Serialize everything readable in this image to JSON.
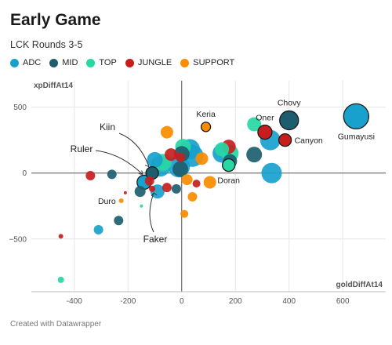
{
  "chart_data": {
    "type": "scatter",
    "title": "Early Game",
    "subtitle": "LCK Rounds 3-5",
    "xlabel": "goldDiffAt14",
    "ylabel": "xpDiffAt14",
    "xlim": [
      -560,
      760
    ],
    "ylim": [
      -900,
      700
    ],
    "x_ticks": [
      -400,
      -200,
      0,
      200,
      400,
      600
    ],
    "y_ticks": [
      500,
      0,
      -500
    ],
    "x_tick_labels": [
      "-400",
      "-200",
      "0",
      "200",
      "400",
      "600"
    ],
    "y_tick_labels": [
      "500",
      "0",
      "−500"
    ],
    "grid": true,
    "legend_position": "top-left",
    "legend": [
      {
        "name": "ADC",
        "color": "#18a1cd"
      },
      {
        "name": "MID",
        "color": "#1d5e6e"
      },
      {
        "name": "TOP",
        "color": "#27d7a4"
      },
      {
        "name": "JUNGLE",
        "color": "#c71e1d"
      },
      {
        "name": "SUPPORT",
        "color": "#fa8c00"
      }
    ],
    "points": [
      {
        "role": "ADC",
        "x": 650,
        "y": 430,
        "r": 16,
        "label": "Gumayusi",
        "outline": true
      },
      {
        "role": "MID",
        "x": 400,
        "y": 400,
        "r": 12,
        "label": "Chovy",
        "outline": true
      },
      {
        "role": "TOP",
        "x": 270,
        "y": 370,
        "r": 9,
        "label": "",
        "outline": false
      },
      {
        "role": "JUNGLE",
        "x": 310,
        "y": 310,
        "r": 9,
        "label": "Oner",
        "outline": true
      },
      {
        "role": "JUNGLE",
        "x": 385,
        "y": 250,
        "r": 8,
        "label": "Canyon",
        "outline": true
      },
      {
        "role": "SUPPORT",
        "x": 90,
        "y": 350,
        "r": 6,
        "label": "Keria",
        "outline": true
      },
      {
        "role": "TOP",
        "x": 175,
        "y": 60,
        "r": 8,
        "label": "Doran",
        "outline": true
      },
      {
        "role": "MID",
        "x": -110,
        "y": 0,
        "r": 8,
        "label": "Kiin",
        "outline": true
      },
      {
        "role": "ADC",
        "x": -140,
        "y": -70,
        "r": 9,
        "label": "Ruler",
        "outline": true
      },
      {
        "role": "JUNGLE",
        "x": -110,
        "y": -120,
        "r": 4,
        "label": "Faker",
        "outline": false
      },
      {
        "role": "SUPPORT",
        "x": -225,
        "y": -210,
        "r": 3,
        "label": "Duro",
        "outline": false
      },
      {
        "role": "ADC",
        "x": 330,
        "y": 250,
        "r": 13,
        "label": "",
        "outline": false
      },
      {
        "role": "MID",
        "x": 270,
        "y": 140,
        "r": 10,
        "label": "",
        "outline": false
      },
      {
        "role": "ADC",
        "x": 335,
        "y": 0,
        "r": 13,
        "label": "",
        "outline": false
      },
      {
        "role": "TOP",
        "x": 180,
        "y": 150,
        "r": 11,
        "label": "",
        "outline": false
      },
      {
        "role": "JUNGLE",
        "x": 175,
        "y": 200,
        "r": 9,
        "label": "",
        "outline": false
      },
      {
        "role": "ADC",
        "x": 150,
        "y": 150,
        "r": 12,
        "label": "",
        "outline": false
      },
      {
        "role": "MID",
        "x": 180,
        "y": 90,
        "r": 9,
        "label": "",
        "outline": false
      },
      {
        "role": "TOP",
        "x": 150,
        "y": 180,
        "r": 9,
        "label": "",
        "outline": false
      },
      {
        "role": "SUPPORT",
        "x": -55,
        "y": 310,
        "r": 8,
        "label": "",
        "outline": false
      },
      {
        "role": "TOP",
        "x": 5,
        "y": 200,
        "r": 10,
        "label": "",
        "outline": false
      },
      {
        "role": "ADC",
        "x": 30,
        "y": 180,
        "r": 13,
        "label": "",
        "outline": false
      },
      {
        "role": "SUPPORT",
        "x": 75,
        "y": 110,
        "r": 8,
        "label": "",
        "outline": false
      },
      {
        "role": "ADC",
        "x": 40,
        "y": 130,
        "r": 14,
        "label": "",
        "outline": false
      },
      {
        "role": "MID",
        "x": 0,
        "y": 145,
        "r": 10,
        "label": "",
        "outline": false
      },
      {
        "role": "JUNGLE",
        "x": -40,
        "y": 140,
        "r": 8,
        "label": "",
        "outline": false
      },
      {
        "role": "TOP",
        "x": -70,
        "y": 80,
        "r": 11,
        "label": "",
        "outline": false
      },
      {
        "role": "ADC",
        "x": -80,
        "y": 50,
        "r": 13,
        "label": "",
        "outline": false
      },
      {
        "role": "ADC",
        "x": -10,
        "y": 50,
        "r": 14,
        "label": "",
        "outline": false
      },
      {
        "role": "MID",
        "x": -5,
        "y": 30,
        "r": 10,
        "label": "",
        "outline": false
      },
      {
        "role": "JUNGLE",
        "x": -5,
        "y": 120,
        "r": 6,
        "label": "",
        "outline": false
      },
      {
        "role": "SUPPORT",
        "x": 20,
        "y": -50,
        "r": 7,
        "label": "",
        "outline": false
      },
      {
        "role": "MID",
        "x": -20,
        "y": -120,
        "r": 6,
        "label": "",
        "outline": false
      },
      {
        "role": "JUNGLE",
        "x": -55,
        "y": -110,
        "r": 6,
        "label": "",
        "outline": false
      },
      {
        "role": "JUNGLE",
        "x": 55,
        "y": -80,
        "r": 5,
        "label": "",
        "outline": false
      },
      {
        "role": "SUPPORT",
        "x": 40,
        "y": -180,
        "r": 6,
        "label": "",
        "outline": false
      },
      {
        "role": "SUPPORT",
        "x": 10,
        "y": -310,
        "r": 5,
        "label": "",
        "outline": false
      },
      {
        "role": "SUPPORT",
        "x": 105,
        "y": -70,
        "r": 8,
        "label": "",
        "outline": false
      },
      {
        "role": "ADC",
        "x": -90,
        "y": -140,
        "r": 9,
        "label": "",
        "outline": false
      },
      {
        "role": "MID",
        "x": -155,
        "y": -140,
        "r": 7,
        "label": "",
        "outline": false
      },
      {
        "role": "JUNGLE",
        "x": -120,
        "y": -60,
        "r": 6,
        "label": "",
        "outline": false
      },
      {
        "role": "MID",
        "x": -260,
        "y": -10,
        "r": 6,
        "label": "",
        "outline": false
      },
      {
        "role": "JUNGLE",
        "x": -340,
        "y": -20,
        "r": 6,
        "label": "",
        "outline": false
      },
      {
        "role": "MID",
        "x": -235,
        "y": -360,
        "r": 6,
        "label": "",
        "outline": false
      },
      {
        "role": "ADC",
        "x": -310,
        "y": -430,
        "r": 6,
        "label": "",
        "outline": false
      },
      {
        "role": "JUNGLE",
        "x": -450,
        "y": -480,
        "r": 3,
        "label": "",
        "outline": false
      },
      {
        "role": "TOP",
        "x": -450,
        "y": -810,
        "r": 4,
        "label": "",
        "outline": false
      },
      {
        "role": "JUNGLE",
        "x": -210,
        "y": -150,
        "r": 2,
        "label": "",
        "outline": false
      },
      {
        "role": "TOP",
        "x": -150,
        "y": -250,
        "r": 2,
        "label": "",
        "outline": false
      },
      {
        "role": "ADC",
        "x": -100,
        "y": 100,
        "r": 10,
        "label": "",
        "outline": false
      }
    ]
  },
  "footer": "Created with Datawrapper"
}
